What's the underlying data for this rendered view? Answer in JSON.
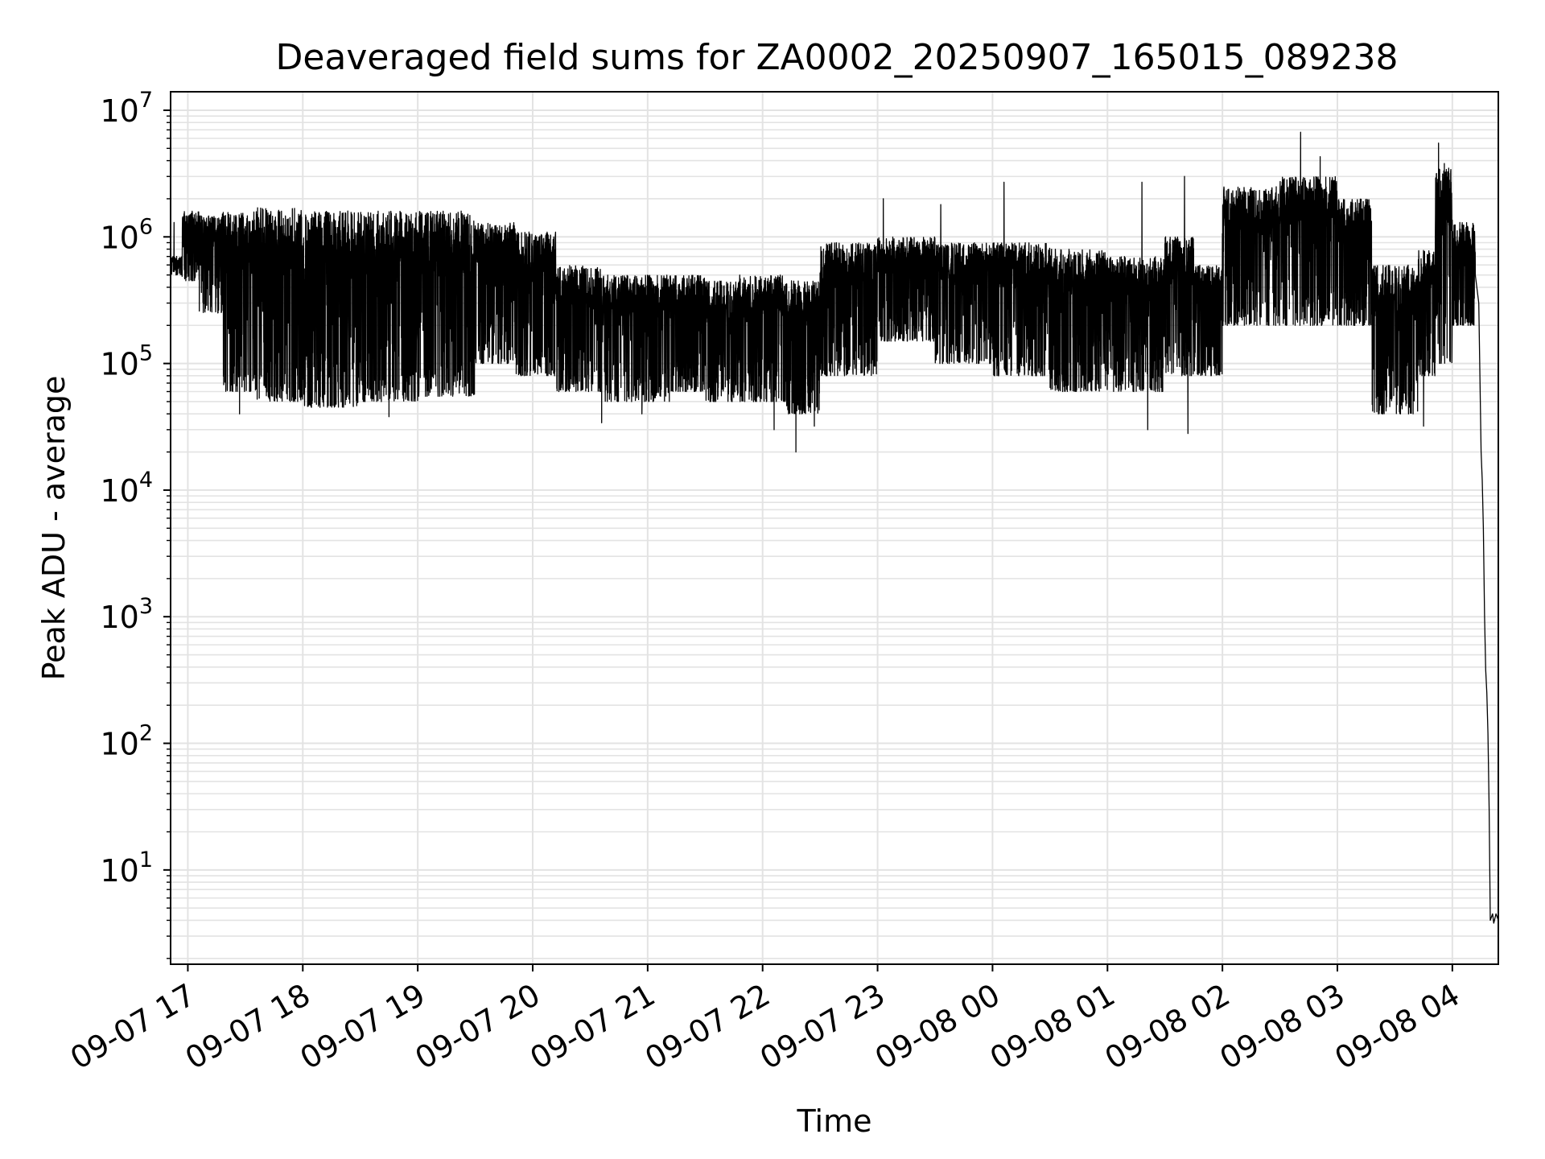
{
  "chart_data": {
    "type": "line",
    "title": "Deaveraged field sums for ZA0002_20250907_165015_089238",
    "xlabel": "Time",
    "ylabel": "Peak ADU - average",
    "yscale": "log",
    "ylim": [
      1.8,
      14000000
    ],
    "xlim_hours": [
      -0.15,
      11.4
    ],
    "grid": true,
    "series_color": "#000000",
    "x_ticks": [
      {
        "hour": 0,
        "label": "09-07 17"
      },
      {
        "hour": 1,
        "label": "09-07 18"
      },
      {
        "hour": 2,
        "label": "09-07 19"
      },
      {
        "hour": 3,
        "label": "09-07 20"
      },
      {
        "hour": 4,
        "label": "09-07 21"
      },
      {
        "hour": 5,
        "label": "09-07 22"
      },
      {
        "hour": 6,
        "label": "09-07 23"
      },
      {
        "hour": 7,
        "label": "09-08 00"
      },
      {
        "hour": 8,
        "label": "09-08 01"
      },
      {
        "hour": 9,
        "label": "09-08 02"
      },
      {
        "hour": 10,
        "label": "09-08 03"
      },
      {
        "hour": 11,
        "label": "09-08 04"
      }
    ],
    "y_ticks": [
      {
        "exp": 1,
        "base": "10",
        "sup": "1"
      },
      {
        "exp": 2,
        "base": "10",
        "sup": "2"
      },
      {
        "exp": 3,
        "base": "10",
        "sup": "3"
      },
      {
        "exp": 4,
        "base": "10",
        "sup": "4"
      },
      {
        "exp": 5,
        "base": "10",
        "sup": "5"
      },
      {
        "exp": 6,
        "base": "10",
        "sup": "6"
      },
      {
        "exp": 7,
        "base": "10",
        "sup": "7"
      }
    ],
    "series": [
      {
        "name": "Deaveraged field sum",
        "segments": [
          {
            "start": -0.15,
            "end": -0.05,
            "upper": 700000,
            "lower": 500000
          },
          {
            "start": -0.05,
            "end": 0.1,
            "upper": 1600000,
            "lower": 450000
          },
          {
            "start": 0.1,
            "end": 0.3,
            "upper": 1500000,
            "lower": 250000
          },
          {
            "start": 0.3,
            "end": 0.6,
            "upper": 1600000,
            "lower": 60000
          },
          {
            "start": 0.6,
            "end": 1.0,
            "upper": 1700000,
            "lower": 50000
          },
          {
            "start": 1.0,
            "end": 1.5,
            "upper": 1600000,
            "lower": 45000
          },
          {
            "start": 1.5,
            "end": 2.0,
            "upper": 1600000,
            "lower": 50000
          },
          {
            "start": 2.0,
            "end": 2.5,
            "upper": 1600000,
            "lower": 55000
          },
          {
            "start": 2.5,
            "end": 2.85,
            "upper": 1300000,
            "lower": 100000
          },
          {
            "start": 2.85,
            "end": 3.2,
            "upper": 1100000,
            "lower": 80000
          },
          {
            "start": 3.2,
            "end": 3.6,
            "upper": 600000,
            "lower": 60000
          },
          {
            "start": 3.6,
            "end": 4.2,
            "upper": 500000,
            "lower": 50000
          },
          {
            "start": 4.2,
            "end": 4.5,
            "upper": 500000,
            "lower": 60000
          },
          {
            "start": 4.5,
            "end": 4.8,
            "upper": 450000,
            "lower": 50000
          },
          {
            "start": 4.8,
            "end": 5.2,
            "upper": 500000,
            "lower": 50000
          },
          {
            "start": 5.2,
            "end": 5.5,
            "upper": 450000,
            "lower": 40000
          },
          {
            "start": 5.5,
            "end": 6.0,
            "upper": 900000,
            "lower": 80000
          },
          {
            "start": 6.0,
            "end": 6.5,
            "upper": 1000000,
            "lower": 150000
          },
          {
            "start": 6.5,
            "end": 7.0,
            "upper": 900000,
            "lower": 100000
          },
          {
            "start": 7.0,
            "end": 7.5,
            "upper": 900000,
            "lower": 80000
          },
          {
            "start": 7.5,
            "end": 8.0,
            "upper": 800000,
            "lower": 60000
          },
          {
            "start": 8.0,
            "end": 8.5,
            "upper": 700000,
            "lower": 60000
          },
          {
            "start": 8.5,
            "end": 8.75,
            "upper": 1000000,
            "lower": 80000
          },
          {
            "start": 8.75,
            "end": 9.0,
            "upper": 600000,
            "lower": 80000
          },
          {
            "start": 9.0,
            "end": 9.5,
            "upper": 2500000,
            "lower": 200000
          },
          {
            "start": 9.5,
            "end": 10.0,
            "upper": 3000000,
            "lower": 200000
          },
          {
            "start": 10.0,
            "end": 10.3,
            "upper": 2000000,
            "lower": 200000
          },
          {
            "start": 10.3,
            "end": 10.7,
            "upper": 600000,
            "lower": 40000
          },
          {
            "start": 10.7,
            "end": 10.85,
            "upper": 800000,
            "lower": 80000
          },
          {
            "start": 10.85,
            "end": 11.0,
            "upper": 3500000,
            "lower": 100000
          },
          {
            "start": 11.0,
            "end": 11.2,
            "upper": 1300000,
            "lower": 200000
          }
        ],
        "spikes": [
          {
            "hour": -0.12,
            "value": 1300000
          },
          {
            "hour": 0.45,
            "value": 40000
          },
          {
            "hour": 1.75,
            "value": 38000
          },
          {
            "hour": 3.6,
            "value": 34000
          },
          {
            "hour": 3.95,
            "value": 40000
          },
          {
            "hour": 5.1,
            "value": 30000
          },
          {
            "hour": 5.29,
            "value": 20000
          },
          {
            "hour": 5.45,
            "value": 32000
          },
          {
            "hour": 6.05,
            "value": 2000000
          },
          {
            "hour": 6.55,
            "value": 1800000
          },
          {
            "hour": 7.1,
            "value": 2700000
          },
          {
            "hour": 8.3,
            "value": 2700000
          },
          {
            "hour": 8.35,
            "value": 30000
          },
          {
            "hour": 8.67,
            "value": 3000000
          },
          {
            "hour": 8.7,
            "value": 28000
          },
          {
            "hour": 9.05,
            "value": 2200000
          },
          {
            "hour": 9.68,
            "value": 6700000
          },
          {
            "hour": 9.85,
            "value": 4300000
          },
          {
            "hour": 10.75,
            "value": 32000
          },
          {
            "hour": 10.88,
            "value": 5500000
          },
          {
            "hour": 10.93,
            "value": 3800000
          }
        ],
        "tail": [
          {
            "hour": 11.2,
            "value": 500000
          },
          {
            "hour": 11.23,
            "value": 300000
          },
          {
            "hour": 11.25,
            "value": 20000
          },
          {
            "hour": 11.26,
            "value": 12000
          },
          {
            "hour": 11.27,
            "value": 5000
          },
          {
            "hour": 11.28,
            "value": 1000
          },
          {
            "hour": 11.29,
            "value": 380
          },
          {
            "hour": 11.3,
            "value": 250
          },
          {
            "hour": 11.31,
            "value": 120
          },
          {
            "hour": 11.32,
            "value": 30
          },
          {
            "hour": 11.33,
            "value": 4
          },
          {
            "hour": 11.35,
            "value": 4.5
          },
          {
            "hour": 11.36,
            "value": 3.8
          },
          {
            "hour": 11.38,
            "value": 4.5
          },
          {
            "hour": 11.4,
            "value": 4
          }
        ]
      }
    ]
  }
}
